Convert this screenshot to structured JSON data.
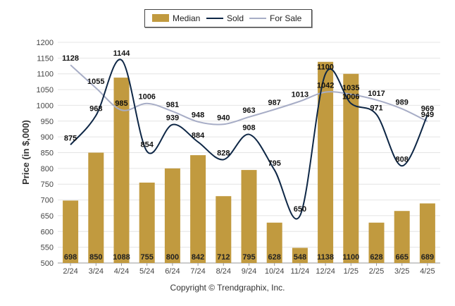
{
  "legend": {
    "median_label": "Median",
    "sold_label": "Sold",
    "for_sale_label": "For Sale"
  },
  "copyright": "Copyright © Trendgraphix, Inc.",
  "colors": {
    "median": "#C19A3F",
    "sold": "#0E2746",
    "for_sale": "#A7ADC6"
  },
  "chart_data": {
    "type": "bar",
    "title": "",
    "xlabel": "",
    "ylabel": "Price (in $,000)",
    "ylim": [
      500,
      1200
    ],
    "yticks": [
      500,
      550,
      600,
      650,
      700,
      750,
      800,
      850,
      900,
      950,
      1000,
      1050,
      1100,
      1150,
      1200
    ],
    "grid": true,
    "legend_position": "top-center",
    "categories": [
      "2/24",
      "3/24",
      "4/24",
      "5/24",
      "6/24",
      "7/24",
      "8/24",
      "9/24",
      "10/24",
      "11/24",
      "12/24",
      "1/25",
      "2/25",
      "3/25",
      "4/25"
    ],
    "series": [
      {
        "name": "Median",
        "type": "bar",
        "values": [
          698,
          850,
          1088,
          755,
          800,
          842,
          712,
          795,
          628,
          548,
          1138,
          1100,
          628,
          665,
          689
        ]
      },
      {
        "name": "Sold",
        "type": "line",
        "values": [
          875,
          968,
          1144,
          854,
          939,
          884,
          828,
          908,
          795,
          650,
          1100,
          1006,
          971,
          808,
          969
        ]
      },
      {
        "name": "For Sale",
        "type": "line",
        "values": [
          1128,
          1055,
          985,
          1006,
          981,
          948,
          940,
          963,
          987,
          1013,
          1042,
          1035,
          1017,
          989,
          949
        ]
      }
    ]
  }
}
